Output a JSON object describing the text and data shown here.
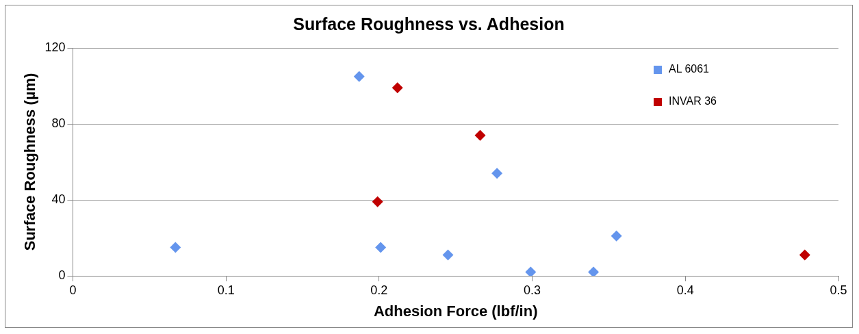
{
  "chart_data": {
    "type": "scatter",
    "title": "Surface Roughness vs. Adhesion",
    "xlabel": "Adhesion Force (lbf/in)",
    "ylabel": "Surface Roughness (µm)",
    "xlim": [
      0,
      0.5
    ],
    "xticks": [
      0,
      0.1,
      0.2,
      0.3,
      0.4,
      0.5
    ],
    "ylim": [
      0,
      120
    ],
    "yticks": [
      0,
      40,
      80,
      120
    ],
    "grid": "y",
    "legend": "top right",
    "marker": "diamond",
    "series": [
      {
        "name": "AL 6061",
        "color": "#6495ed",
        "x": [
          0.067,
          0.187,
          0.201,
          0.245,
          0.277,
          0.299,
          0.34,
          0.355
        ],
        "values": [
          15,
          105,
          15,
          11,
          54,
          2,
          2,
          21
        ]
      },
      {
        "name": "INVAR 36",
        "color": "#c00000",
        "x": [
          0.212,
          0.266,
          0.199,
          0.478
        ],
        "values": [
          99,
          74,
          39,
          11
        ]
      }
    ]
  }
}
